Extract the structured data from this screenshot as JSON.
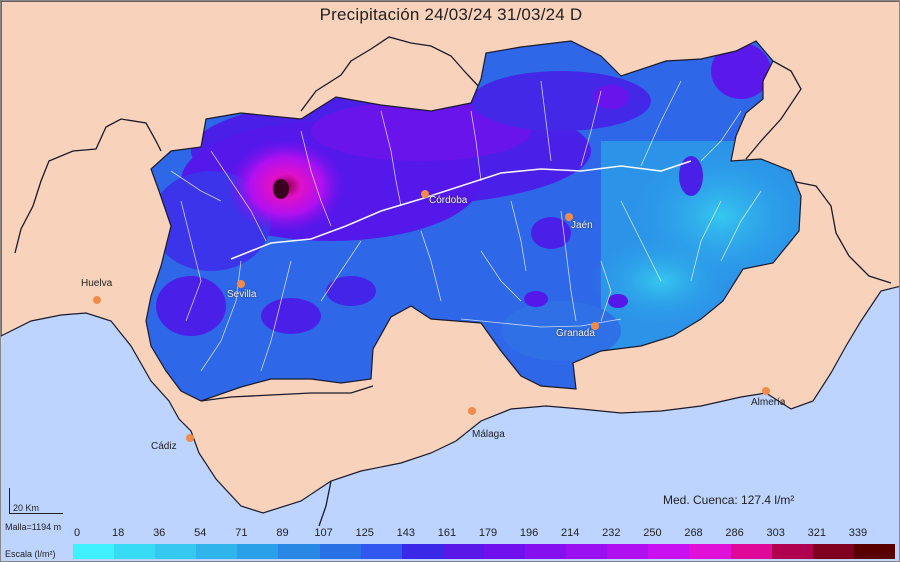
{
  "title": "Precipitación 24/03/24 31/03/24 D",
  "cities": [
    {
      "name": "Huelva",
      "style": "dark"
    },
    {
      "name": "Sevilla",
      "style": "light"
    },
    {
      "name": "Córdoba",
      "style": "light"
    },
    {
      "name": "Jaén",
      "style": "light"
    },
    {
      "name": "Granada",
      "style": "light"
    },
    {
      "name": "Almería",
      "style": "dark"
    },
    {
      "name": "Málaga",
      "style": "dark"
    },
    {
      "name": "Cádiz",
      "style": "dark"
    }
  ],
  "scale_bar": {
    "distance": "20 Km",
    "mesh": "Malla=1194 m"
  },
  "mean_label": "Med. Cuenca: 127.4 l/m²",
  "legend": {
    "title": "Escala (l/m²)",
    "ticks": [
      "0",
      "18",
      "36",
      "54",
      "71",
      "89",
      "107",
      "125",
      "143",
      "161",
      "179",
      "196",
      "214",
      "232",
      "250",
      "268",
      "286",
      "303",
      "321",
      "339"
    ],
    "colors": [
      "#3ff0ff",
      "#37dcf4",
      "#35c8f0",
      "#30b4ec",
      "#2aa0e8",
      "#2888e4",
      "#2870e4",
      "#3058f0",
      "#3a28e8",
      "#5a18e8",
      "#7010ec",
      "#8410f0",
      "#9a10f0",
      "#b010f0",
      "#c810f0",
      "#e010d8",
      "#e00898",
      "#b00050",
      "#800020",
      "#580000"
    ]
  },
  "colors": {
    "sea": "#bcd4ff",
    "land": "#f9d2bc",
    "river": "#ffffff",
    "city_marker": "#f28a4a"
  }
}
